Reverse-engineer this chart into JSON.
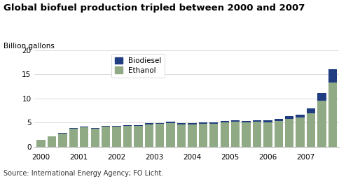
{
  "title": "Global biofuel production tripled between 2000 and 2007",
  "ylabel": "Billion gallons",
  "source": "Source: International Energy Agency; FO Licht.",
  "ethanol_color": "#8faa84",
  "biodiesel_color": "#1f3d80",
  "ylim": [
    0,
    20
  ],
  "yticks": [
    0,
    5,
    10,
    15,
    20
  ],
  "ethanol": [
    1.4,
    2.1,
    2.8,
    3.8,
    4.1,
    3.8,
    4.2,
    4.2,
    4.3,
    4.3,
    4.6,
    4.7,
    4.9,
    4.6,
    4.6,
    4.8,
    4.8,
    5.0,
    5.2,
    5.0,
    5.2,
    5.1,
    5.3,
    5.8,
    6.0,
    7.0,
    9.5,
    13.3
  ],
  "biodiesel": [
    0.05,
    0.05,
    0.1,
    0.1,
    0.1,
    0.1,
    0.15,
    0.15,
    0.2,
    0.2,
    0.25,
    0.25,
    0.3,
    0.3,
    0.3,
    0.3,
    0.3,
    0.35,
    0.35,
    0.35,
    0.35,
    0.4,
    0.5,
    0.6,
    0.7,
    1.0,
    1.7,
    2.7
  ],
  "bars_per_year": 3.5,
  "num_bars": 28,
  "year_start": 2000,
  "year_end": 2007,
  "background_color": "#ffffff",
  "title_fontsize": 9.5,
  "label_fontsize": 7.5,
  "tick_fontsize": 7.5,
  "source_fontsize": 7.0
}
